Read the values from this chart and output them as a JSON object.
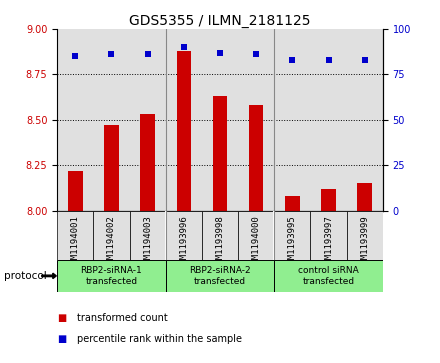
{
  "title": "GDS5355 / ILMN_2181125",
  "samples": [
    "GSM1194001",
    "GSM1194002",
    "GSM1194003",
    "GSM1193996",
    "GSM1193998",
    "GSM1194000",
    "GSM1193995",
    "GSM1193997",
    "GSM1193999"
  ],
  "bar_values": [
    8.22,
    8.47,
    8.53,
    8.88,
    8.63,
    8.58,
    8.08,
    8.12,
    8.15
  ],
  "percentile_values": [
    85,
    86,
    86,
    90,
    87,
    86,
    83,
    83,
    83
  ],
  "ylim_left": [
    8.0,
    9.0
  ],
  "ylim_right": [
    0,
    100
  ],
  "yticks_left": [
    8.0,
    8.25,
    8.5,
    8.75,
    9.0
  ],
  "yticks_right": [
    0,
    25,
    50,
    75,
    100
  ],
  "bar_color": "#cc0000",
  "scatter_color": "#0000cc",
  "groups": [
    {
      "label": "RBP2-siRNA-1\ntransfected",
      "indices": [
        0,
        1,
        2
      ],
      "color": "#90ee90"
    },
    {
      "label": "RBP2-siRNA-2\ntransfected",
      "indices": [
        3,
        4,
        5
      ],
      "color": "#90ee90"
    },
    {
      "label": "control siRNA\ntransfected",
      "indices": [
        6,
        7,
        8
      ],
      "color": "#90ee90"
    }
  ],
  "protocol_label": "protocol",
  "legend_bar_label": "transformed count",
  "legend_scatter_label": "percentile rank within the sample",
  "bg_color_plot": "#e0e0e0",
  "title_fontsize": 10,
  "tick_fontsize": 7,
  "bar_width": 0.4
}
